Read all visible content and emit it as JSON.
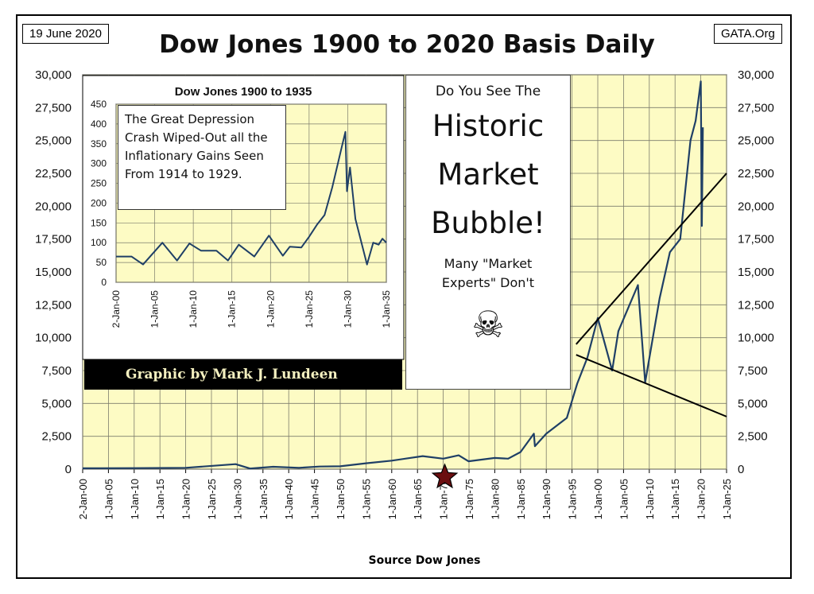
{
  "header": {
    "date": "19 June 2020",
    "source_site": "GATA.Org",
    "title": "Dow Jones 1900 to 2020 Basis Daily",
    "xlabel": "Source Dow Jones"
  },
  "credit": "Graphic by Mark J. Lundeen",
  "callout": {
    "question": "Do You See The",
    "headline": [
      "Historic",
      "Market",
      "Bubble!"
    ],
    "note": [
      "Many \"Market",
      "Experts\"  Don't"
    ],
    "icon": "skull-crossbones-icon"
  },
  "inset_note": "The Great Depression Crash Wiped-Out all the Inflationary Gains Seen From 1914 to 1929.",
  "colors": {
    "plot_bg": "#fdfbc4",
    "line": "#1f3f66",
    "grid": "#7c7c6c",
    "marker": "#6b0e10"
  },
  "chart_data": [
    {
      "type": "line",
      "title": "Dow Jones 1900 to 2020 Basis Daily",
      "xlabel": "Source Dow Jones",
      "ylabel": "",
      "ylim": [
        0,
        30000
      ],
      "xlim": [
        "1900-01-02",
        "2025-01-01"
      ],
      "x_tick_labels": [
        "2-Jan-00",
        "1-Jan-05",
        "1-Jan-10",
        "1-Jan-15",
        "1-Jan-20",
        "1-Jan-25",
        "1-Jan-30",
        "1-Jan-35",
        "1-Jan-40",
        "1-Jan-45",
        "1-Jan-50",
        "1-Jan-55",
        "1-Jan-60",
        "1-Jan-65",
        "1-Jan-70",
        "1-Jan-75",
        "1-Jan-80",
        "1-Jan-85",
        "1-Jan-90",
        "1-Jan-95",
        "1-Jan-00",
        "1-Jan-05",
        "1-Jan-10",
        "1-Jan-15",
        "1-Jan-20",
        "1-Jan-25"
      ],
      "y_tick_labels": [
        "0",
        "2,500",
        "5,000",
        "7,500",
        "10,000",
        "12,500",
        "15,000",
        "17,500",
        "20,000",
        "22,500",
        "25,000",
        "27,500",
        "30,000"
      ],
      "series": [
        {
          "x": [
            1900,
            1910,
            1920,
            1929.7,
            1932.5,
            1937,
            1942,
            1946,
            1950,
            1955,
            1960,
            1966,
            1970,
            1973,
            1974.9,
            1980,
            1982.6,
            1985,
            1987.6,
            1987.8,
            1990,
            1994,
            1996,
            1998,
            2000,
            2002.8,
            2004,
            2007.8,
            2009.2,
            2012,
            2014,
            2016,
            2018,
            2019,
            2020,
            2020.2,
            2020.4
          ],
          "y": [
            65,
            80,
            100,
            380,
            50,
            180,
            100,
            200,
            220,
            450,
            650,
            990,
            800,
            1050,
            600,
            850,
            800,
            1300,
            2700,
            1750,
            2700,
            3900,
            6500,
            8500,
            11500,
            7500,
            10500,
            14000,
            6600,
            13000,
            16500,
            17500,
            25000,
            26500,
            29500,
            18500,
            26000
          ]
        }
      ],
      "trend_lines": [
        {
          "x": [
            1995.8,
            2025
          ],
          "y": [
            9500,
            22500
          ]
        },
        {
          "x": [
            1995.8,
            2025
          ],
          "y": [
            8700,
            4000
          ]
        }
      ],
      "markers": [
        {
          "x": 1970.3,
          "y": 0,
          "shape": "star"
        }
      ],
      "grid": true,
      "secondary_y_axis": true
    },
    {
      "type": "line",
      "title": "Dow Jones 1900 to 1935",
      "ylim": [
        0,
        450
      ],
      "xlim": [
        "1900-01-02",
        "1935-01-01"
      ],
      "x_tick_labels": [
        "2-Jan-00",
        "1-Jan-05",
        "1-Jan-10",
        "1-Jan-15",
        "1-Jan-20",
        "1-Jan-25",
        "1-Jan-30",
        "1-Jan-35"
      ],
      "y_tick_labels": [
        "0",
        "50",
        "100",
        "150",
        "200",
        "250",
        "300",
        "350",
        "400",
        "450"
      ],
      "series": [
        {
          "x": [
            1900,
            1902,
            1903.5,
            1906,
            1907.9,
            1909.5,
            1911,
            1913,
            1914.5,
            1915.9,
            1917.9,
            1919.8,
            1921.6,
            1922.5,
            1924,
            1925,
            1926,
            1927,
            1928,
            1929.2,
            1929.7,
            1929.9,
            1930.3,
            1931,
            1932.5,
            1933.3,
            1934,
            1934.5,
            1935
          ],
          "y": [
            65,
            65,
            45,
            100,
            55,
            98,
            80,
            80,
            55,
            95,
            65,
            118,
            67,
            90,
            88,
            115,
            145,
            170,
            240,
            340,
            380,
            230,
            290,
            160,
            45,
            100,
            95,
            110,
            100
          ]
        }
      ],
      "grid": true
    }
  ]
}
